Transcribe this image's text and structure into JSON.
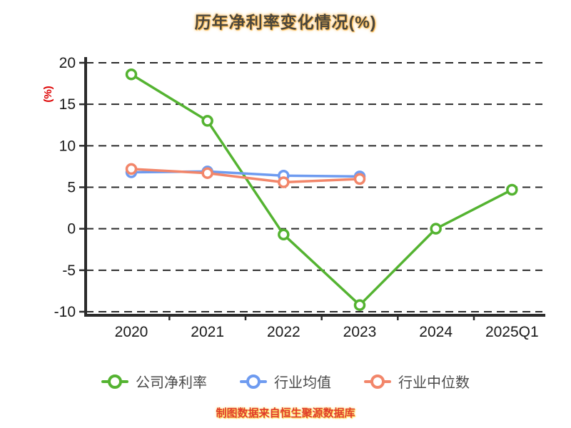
{
  "title": "历年净利率变化情况(%)",
  "footer": "制图数据来自恒生聚源数据库",
  "colors": {
    "company": "#54b331",
    "industry_avg": "#6e9bf0",
    "industry_median": "#f2866a",
    "axis": "#2b2b2b",
    "tick_label": "#1a1a1a",
    "ylabel": "#dd0000"
  },
  "chart_data": {
    "type": "line",
    "title": "历年净利率变化情况(%)",
    "categories": [
      "2020",
      "2021",
      "2022",
      "2023",
      "2024",
      "2025Q1"
    ],
    "series": [
      {
        "name": "公司净利率",
        "color": "#54b331",
        "values": [
          18.6,
          13.0,
          -0.7,
          -9.2,
          0.0,
          4.7
        ]
      },
      {
        "name": "行业均值",
        "color": "#6e9bf0",
        "values": [
          6.8,
          6.9,
          6.4,
          6.3,
          null,
          null
        ]
      },
      {
        "name": "行业中位数",
        "color": "#f2866a",
        "values": [
          7.2,
          6.7,
          5.6,
          6.0,
          null,
          null
        ]
      }
    ],
    "xlabel": "",
    "ylabel": "(%)",
    "ylim": [
      -10,
      20
    ],
    "yticks": [
      20,
      15,
      10,
      5,
      0,
      -5,
      -10
    ],
    "grid": true,
    "grid_style": "dashed",
    "legend_position": "bottom",
    "marker": "circle-open"
  }
}
